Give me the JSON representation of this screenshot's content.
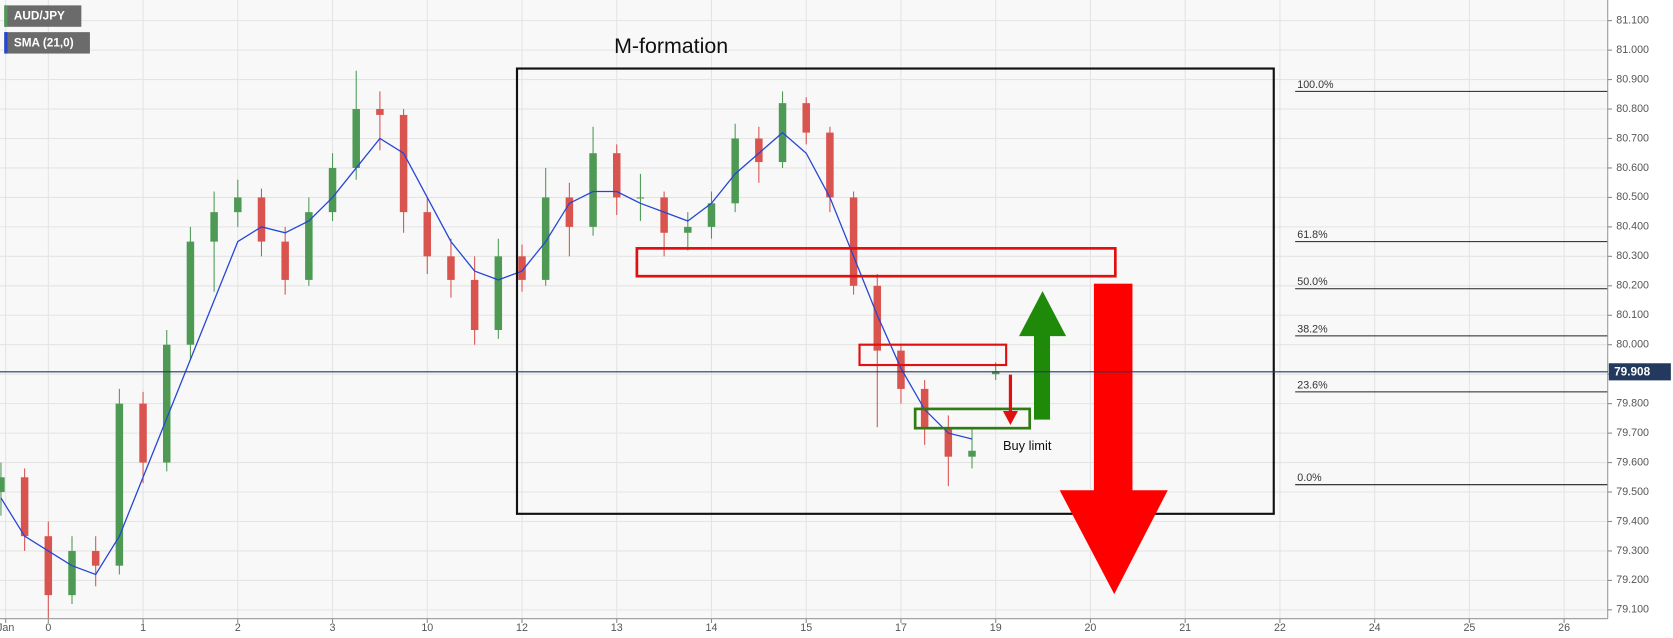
{
  "chart_data": {
    "type": "candlestick",
    "symbol": "AUD/JPY",
    "up_color": "#4e9a55",
    "down_color": "#d9534f",
    "x": [
      -0.5,
      -0.25,
      0,
      0.25,
      0.5,
      0.75,
      1,
      1.25,
      1.5,
      1.75,
      2,
      2.25,
      2.5,
      2.75,
      3,
      3.25,
      3.5,
      3.75,
      4,
      4.25,
      4.5,
      4.75,
      5,
      5.25,
      5.5,
      5.75,
      6,
      6.25,
      6.5,
      6.75,
      7,
      7.25,
      7.5,
      7.75,
      8,
      8.25,
      8.5,
      8.75,
      9,
      9.25,
      9.5,
      9.75,
      10
    ],
    "ohlc": [
      [
        79.5,
        79.6,
        79.42,
        79.55
      ],
      [
        79.55,
        79.58,
        79.3,
        79.35
      ],
      [
        79.35,
        79.4,
        79.07,
        79.15
      ],
      [
        79.15,
        79.35,
        79.12,
        79.3
      ],
      [
        79.3,
        79.35,
        79.18,
        79.25
      ],
      [
        79.25,
        79.85,
        79.22,
        79.8
      ],
      [
        79.8,
        79.84,
        79.53,
        79.6
      ],
      [
        79.6,
        80.05,
        79.57,
        80.0
      ],
      [
        80.0,
        80.4,
        79.95,
        80.35
      ],
      [
        80.35,
        80.52,
        80.18,
        80.45
      ],
      [
        80.45,
        80.56,
        80.4,
        80.5
      ],
      [
        80.5,
        80.53,
        80.3,
        80.35
      ],
      [
        80.35,
        80.4,
        80.17,
        80.22
      ],
      [
        80.22,
        80.5,
        80.2,
        80.45
      ],
      [
        80.45,
        80.65,
        80.42,
        80.6
      ],
      [
        80.6,
        80.93,
        80.56,
        80.8
      ],
      [
        80.8,
        80.86,
        80.66,
        80.78
      ],
      [
        80.78,
        80.8,
        80.38,
        80.45
      ],
      [
        80.45,
        80.5,
        80.24,
        80.3
      ],
      [
        80.3,
        80.36,
        80.16,
        80.22
      ],
      [
        80.22,
        80.3,
        80.0,
        80.05
      ],
      [
        80.05,
        80.36,
        80.02,
        80.3
      ],
      [
        80.3,
        80.34,
        80.18,
        80.22
      ],
      [
        80.22,
        80.6,
        80.2,
        80.5
      ],
      [
        80.5,
        80.55,
        80.3,
        80.4
      ],
      [
        80.4,
        80.74,
        80.37,
        80.65
      ],
      [
        80.65,
        80.68,
        80.44,
        80.5
      ],
      [
        80.5,
        80.58,
        80.42,
        80.5
      ],
      [
        80.5,
        80.52,
        80.3,
        80.38
      ],
      [
        80.38,
        80.45,
        80.32,
        80.4
      ],
      [
        80.4,
        80.52,
        80.36,
        80.48
      ],
      [
        80.48,
        80.75,
        80.45,
        80.7
      ],
      [
        80.7,
        80.74,
        80.55,
        80.62
      ],
      [
        80.62,
        80.86,
        80.6,
        80.82
      ],
      [
        80.82,
        80.84,
        80.68,
        80.72
      ],
      [
        80.72,
        80.74,
        80.45,
        80.5
      ],
      [
        80.5,
        80.52,
        80.17,
        80.2
      ],
      [
        80.2,
        80.24,
        79.72,
        79.98
      ],
      [
        79.98,
        80.0,
        79.8,
        79.85
      ],
      [
        79.85,
        79.88,
        79.66,
        79.72
      ],
      [
        79.72,
        79.76,
        79.52,
        79.62
      ],
      [
        79.62,
        79.72,
        79.58,
        79.64
      ],
      [
        79.9,
        79.94,
        79.88,
        79.91
      ]
    ],
    "sma": {
      "name": "SMA (21,0)",
      "color": "#2546d6",
      "values": [
        79.48,
        79.35,
        79.3,
        79.25,
        79.22,
        79.35,
        79.55,
        79.75,
        79.95,
        80.15,
        80.35,
        80.4,
        80.38,
        80.42,
        80.5,
        80.6,
        80.7,
        80.65,
        80.5,
        80.35,
        80.25,
        80.22,
        80.25,
        80.35,
        80.48,
        80.52,
        80.52,
        80.48,
        80.45,
        80.42,
        80.48,
        80.58,
        80.65,
        80.72,
        80.65,
        80.5,
        80.3,
        80.1,
        79.92,
        79.78,
        79.7,
        79.68,
        null
      ]
    },
    "last_price": 79.908,
    "fib_levels": [
      {
        "value": 80.86,
        "label": "100.0%"
      },
      {
        "value": 80.35,
        "label": "61.8%"
      },
      {
        "value": 80.19,
        "label": "50.0%"
      },
      {
        "value": 80.03,
        "label": "38.2%"
      },
      {
        "value": 79.84,
        "label": "23.6%"
      },
      {
        "value": 79.525,
        "label": "0.0%"
      }
    ],
    "annotations": {
      "pattern": "M-formation",
      "order": "Buy limit"
    },
    "xlim": [
      -0.51,
      16.46
    ],
    "ylim": [
      79.07,
      81.17
    ],
    "xticks": [
      {
        "value": -0.45,
        "label": "Jan"
      },
      0,
      1,
      2,
      3,
      {
        "value": 4,
        "label": "10"
      },
      {
        "value": 5,
        "label": "12"
      },
      {
        "value": 6,
        "label": "13"
      },
      {
        "value": 7,
        "label": "14"
      },
      {
        "value": 8,
        "label": "15"
      },
      {
        "value": 9,
        "label": "17"
      },
      {
        "value": 10,
        "label": "19"
      },
      {
        "value": 11,
        "label": "20"
      },
      {
        "value": 12,
        "label": "21"
      },
      {
        "value": 13,
        "label": "22"
      },
      {
        "value": 14,
        "label": "24"
      },
      {
        "value": 15,
        "label": "25"
      },
      {
        "value": 16,
        "label": "26"
      }
    ],
    "yticks": [
      {
        "value": 79.1,
        "label": "79.100"
      },
      {
        "value": 79.2,
        "label": "79.200"
      },
      {
        "value": 79.3,
        "label": "79.300"
      },
      {
        "value": 79.4,
        "label": "79.400"
      },
      {
        "value": 79.5,
        "label": "79.500"
      },
      {
        "value": 79.6,
        "label": "79.600"
      },
      {
        "value": 79.7,
        "label": "79.700"
      },
      {
        "value": 79.8,
        "label": "79.800"
      },
      {
        "value": 79.9,
        "label": "79.900"
      },
      {
        "value": 80.0,
        "label": "80.000"
      },
      {
        "value": 80.1,
        "label": "80.100"
      },
      {
        "value": 80.2,
        "label": "80.200"
      },
      {
        "value": 80.3,
        "label": "80.300"
      },
      {
        "value": 80.4,
        "label": "80.400"
      },
      {
        "value": 80.5,
        "label": "80.500"
      },
      {
        "value": 80.6,
        "label": "80.600"
      },
      {
        "value": 80.7,
        "label": "80.700"
      },
      {
        "value": 80.8,
        "label": "80.800"
      },
      {
        "value": 80.9,
        "label": "80.900"
      },
      {
        "value": 81.0,
        "label": "81.000"
      },
      {
        "value": 81.1,
        "label": "81.100"
      }
    ],
    "grid": true
  }
}
